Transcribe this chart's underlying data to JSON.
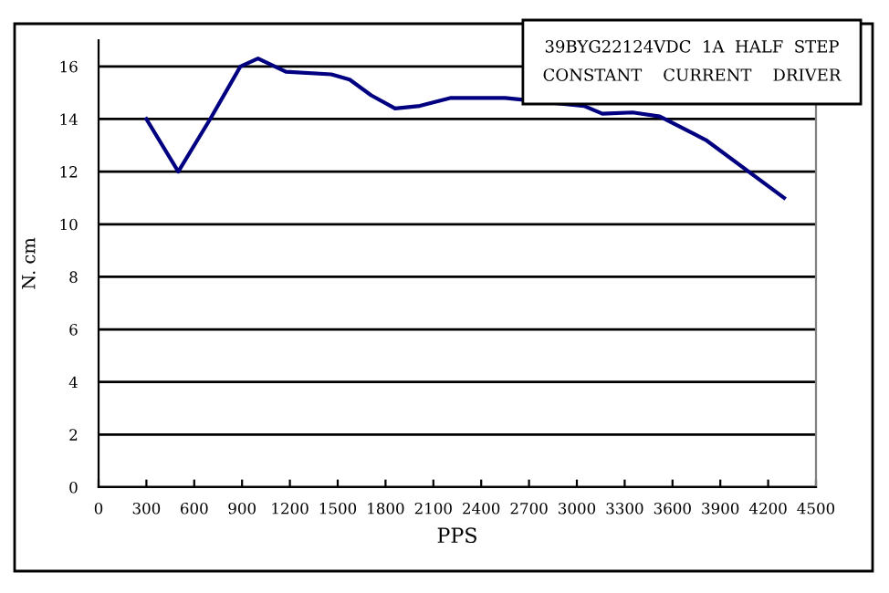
{
  "chart_data": {
    "type": "line",
    "xlabel": "PPS",
    "ylabel": "N. cm",
    "annotations": [
      "39BYG22124VDC  1A  HALF  STEP",
      "CONSTANT    CURRENT    DRIVER"
    ],
    "x": [
      300,
      500,
      700,
      890,
      1000,
      1175,
      1460,
      1575,
      1710,
      1860,
      2015,
      2205,
      2550,
      3045,
      3160,
      3350,
      3520,
      3810,
      4300
    ],
    "series": [
      {
        "color": "#000080",
        "values": [
          14,
          12,
          14,
          16,
          16.3,
          15.8,
          15.7,
          15.5,
          14.9,
          14.4,
          14.5,
          14.8,
          14.8,
          14.5,
          14.2,
          14.25,
          14.1,
          13.2,
          11.0
        ]
      }
    ],
    "xlim": [
      0,
      4500
    ],
    "xticks": [
      0,
      300,
      600,
      900,
      1200,
      1500,
      1800,
      2100,
      2400,
      2700,
      3000,
      3300,
      3600,
      3900,
      4200,
      4500
    ],
    "ylim": [
      0,
      17
    ],
    "yticks": [
      0,
      2,
      4,
      6,
      8,
      10,
      12,
      14,
      16
    ],
    "grid": "y",
    "legend": false,
    "marker": "none",
    "line_style": "solid"
  }
}
